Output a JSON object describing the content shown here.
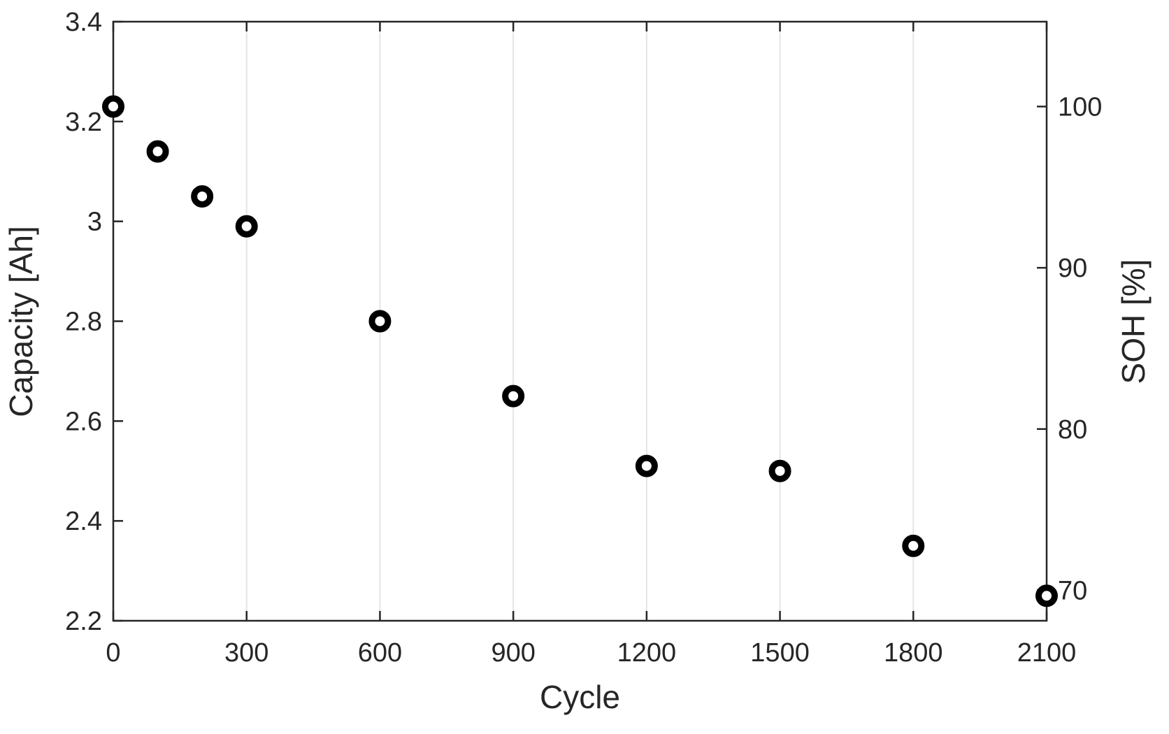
{
  "chart_data": {
    "type": "scatter",
    "title": "",
    "xlabel": "Cycle",
    "ylabel_left": "Capacity [Ah]",
    "ylabel_right": "SOH [%]",
    "x": [
      0,
      100,
      200,
      300,
      600,
      900,
      1200,
      1500,
      1800,
      2100
    ],
    "series": [
      {
        "name": "Capacity",
        "axis": "left",
        "values": [
          3.23,
          3.14,
          3.05,
          2.99,
          2.8,
          2.65,
          2.51,
          2.5,
          2.35,
          2.25
        ]
      }
    ],
    "soh_equivalent_pct": [
      100.0,
      97.2,
      94.4,
      92.6,
      86.7,
      82.0,
      77.7,
      77.4,
      72.8,
      69.7
    ],
    "nominal_capacity_ah": 3.23,
    "xlim": [
      0,
      2100
    ],
    "ylim_left": [
      2.2,
      3.4
    ],
    "xticks": [
      0,
      300,
      600,
      900,
      1200,
      1500,
      1800,
      2100
    ],
    "xtick_labels": [
      "0",
      "300",
      "600",
      "900",
      "1200",
      "1500",
      "1800",
      "2100"
    ],
    "yticks_left": [
      2.2,
      2.4,
      2.6,
      2.8,
      3.0,
      3.2,
      3.4
    ],
    "ytick_left_labels": [
      "2.2",
      "2.4",
      "2.6",
      "2.8",
      "3",
      "3.2",
      "3.4"
    ],
    "yticks_right": [
      70,
      80,
      90,
      100
    ],
    "ytick_right_labels": [
      "70",
      "80",
      "90",
      "100"
    ],
    "grid": {
      "x": true,
      "y": false
    },
    "legend": null,
    "marker": {
      "shape": "open-circle",
      "color": "#000000"
    },
    "colors": {
      "marker": "#000000",
      "axis": "#262626",
      "grid": "#e4e4e4",
      "background": "#ffffff",
      "tick_text": "#262626"
    }
  }
}
